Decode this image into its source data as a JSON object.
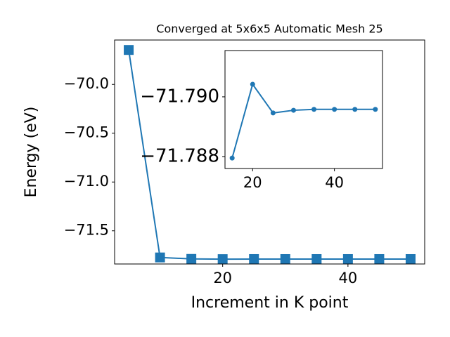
{
  "chart_data": [
    {
      "type": "line",
      "title": "Converged at 5x6x5 Automatic Mesh 25",
      "x_label": "Increment in K point",
      "y_label": "Energy (eV)",
      "x": [
        5,
        10,
        15,
        20,
        25,
        30,
        35,
        40,
        45,
        50
      ],
      "series": [
        {
          "color": "#1f77b4",
          "marker": "square",
          "values": [
            -69.647,
            -71.773,
            -71.788,
            -71.7904,
            -71.7895,
            -71.7896,
            -71.7896,
            -71.7896,
            -71.7896,
            -71.7896
          ]
        }
      ],
      "xlim": [
        2.75,
        52.25
      ],
      "ylim": [
        -71.84,
        -69.545
      ],
      "xticks": [
        20,
        40
      ],
      "yticks": [
        {
          "value": -70.0,
          "label": "−70.0"
        },
        {
          "value": -70.5,
          "label": "−70.5"
        },
        {
          "value": -71.0,
          "label": "−71.0"
        },
        {
          "value": -71.5,
          "label": "−71.5"
        }
      ]
    },
    {
      "type": "line",
      "x": [
        15,
        20,
        25,
        30,
        35,
        40,
        45,
        50
      ],
      "series": [
        {
          "color": "#1f77b4",
          "marker": "circle",
          "values": [
            -71.78795,
            -71.79042,
            -71.78946,
            -71.78955,
            -71.78958,
            -71.78958,
            -71.78958,
            -71.78958
          ]
        }
      ],
      "xlim": [
        13.25,
        51.75
      ],
      "ylim": [
        -71.7876,
        -71.79155
      ],
      "xticks": [
        20,
        40
      ],
      "yticks": [
        {
          "value": -71.79,
          "label": "−71.790"
        },
        {
          "value": -71.788,
          "label": "−71.788"
        }
      ]
    }
  ]
}
